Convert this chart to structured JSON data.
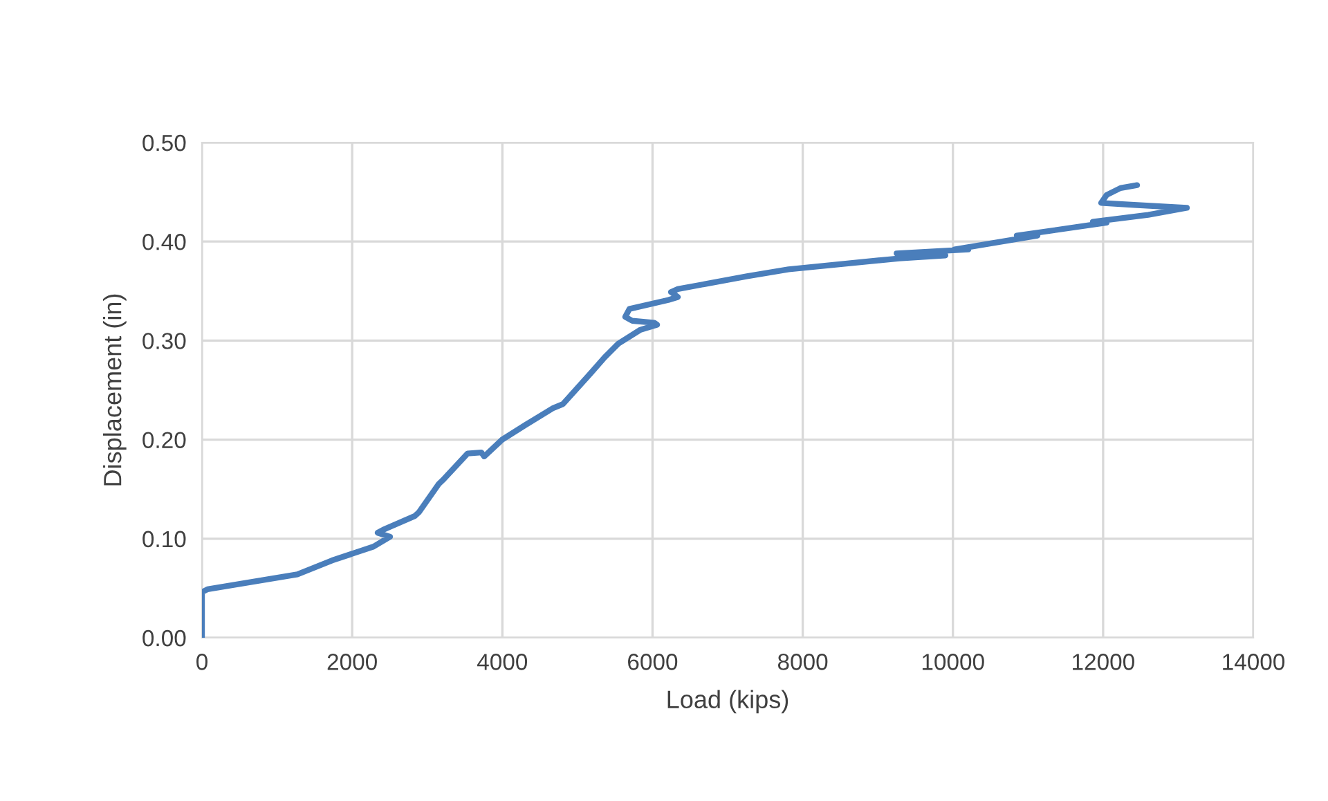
{
  "chart_data": {
    "type": "line",
    "xlabel": "Load (kips)",
    "ylabel": "Displacement (in)",
    "xlim": [
      0,
      14000
    ],
    "xticks": [
      0,
      2000,
      4000,
      6000,
      8000,
      10000,
      12000,
      14000
    ],
    "ylim": [
      0,
      0.5
    ],
    "yticks": [
      {
        "value": 0,
        "label": "0.00"
      },
      {
        "value": 0.1,
        "label": "0.10"
      },
      {
        "value": 0.2,
        "label": "0.20"
      },
      {
        "value": 0.3,
        "label": "0.30"
      },
      {
        "value": 0.4,
        "label": "0.40"
      },
      {
        "value": 0.5,
        "label": "0.50"
      }
    ],
    "grid": true,
    "marker": "none",
    "line_style": "solid",
    "series": [
      {
        "color": "#4a7ebb",
        "x": [
          0,
          0,
          74,
          1270,
          1730,
          2284,
          2505,
          2339,
          2413,
          2837,
          2892,
          3113,
          3150,
          3205,
          3537,
          3721,
          3758,
          3997,
          4311,
          4679,
          4808,
          5176,
          5361,
          5545,
          5840,
          6061,
          6024,
          5729,
          5637,
          5692,
          6208,
          6337,
          6245,
          6337,
          7258,
          7811,
          9284,
          9900,
          9250,
          10206,
          10021,
          11126,
          10850,
          12047,
          11863,
          12600,
          13116,
          12416,
          11974,
          12047,
          12232,
          12453
        ],
        "values": [
          0,
          0.046,
          0.049,
          0.064,
          0.078,
          0.092,
          0.102,
          0.106,
          0.109,
          0.123,
          0.127,
          0.151,
          0.155,
          0.159,
          0.186,
          0.187,
          0.183,
          0.2,
          0.215,
          0.232,
          0.236,
          0.267,
          0.283,
          0.297,
          0.311,
          0.316,
          0.318,
          0.32,
          0.324,
          0.332,
          0.341,
          0.344,
          0.349,
          0.352,
          0.365,
          0.372,
          0.383,
          0.386,
          0.388,
          0.392,
          0.392,
          0.406,
          0.406,
          0.419,
          0.42,
          0.427,
          0.434,
          0.437,
          0.439,
          0.447,
          0.454,
          0.457
        ]
      }
    ]
  }
}
